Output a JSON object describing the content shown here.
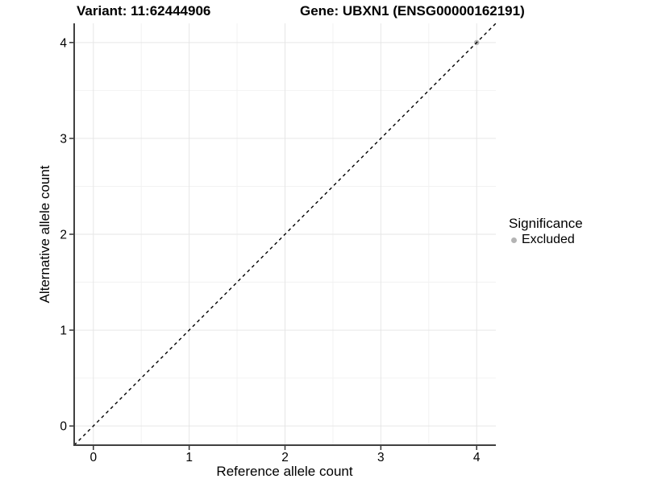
{
  "chart_data": {
    "type": "scatter",
    "title_left": "Variant: 11:62444906",
    "title_right": "Gene: UBXN1 (ENSG00000162191)",
    "xlabel": "Reference allele count",
    "ylabel": "Alternative allele count",
    "xlim": [
      -0.2,
      4.2
    ],
    "ylim": [
      -0.2,
      4.2
    ],
    "x_ticks": [
      0,
      1,
      2,
      3,
      4
    ],
    "y_ticks": [
      0,
      1,
      2,
      3,
      4
    ],
    "x_minor_ticks": [
      0.5,
      1.5,
      2.5,
      3.5
    ],
    "y_minor_ticks": [
      0.5,
      1.5,
      2.5,
      3.5
    ],
    "grid": "major and minor gridlines on white background",
    "series": [
      {
        "name": "Excluded",
        "color": "#b4b4b4",
        "marker": "circle",
        "points": [
          {
            "x": 4,
            "y": 4
          }
        ]
      }
    ],
    "reference_line": {
      "kind": "identity",
      "equation": "y = x",
      "style": "dashed",
      "color": "#000000"
    },
    "legend": {
      "position": "right",
      "title": "Significance",
      "entries": [
        {
          "label": "Excluded",
          "color": "#b4b4b4",
          "marker": "circle"
        }
      ]
    },
    "colors": {
      "background": "#ffffff",
      "grid_major": "#e6e6e6",
      "grid_minor": "#f2f2f2",
      "axis_line": "#404040",
      "tick_mark": "#333333",
      "text": "#000000",
      "point": "#b4b4b4"
    }
  }
}
